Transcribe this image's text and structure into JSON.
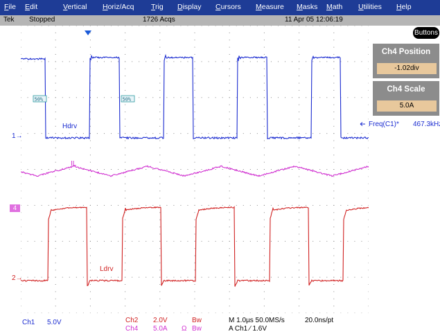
{
  "menu": [
    {
      "label": "File"
    },
    {
      "label": "Edit"
    },
    {
      "label": "Vertical"
    },
    {
      "label": "Horiz/Acq"
    },
    {
      "label": "Trig"
    },
    {
      "label": "Display"
    },
    {
      "label": "Cursors"
    },
    {
      "label": "Measure"
    },
    {
      "label": "Masks"
    },
    {
      "label": "Math"
    },
    {
      "label": "Utilities"
    },
    {
      "label": "Help"
    }
  ],
  "status": {
    "brand": "Tek",
    "state": "Stopped",
    "acqs": "1726 Acqs",
    "datetime": "11 Apr 05 12:06:19"
  },
  "panel": {
    "button_label": "Buttons",
    "position": {
      "title": "Ch4 Position",
      "value": "-1.02div"
    },
    "scale": {
      "title": "Ch4 Scale",
      "value": "5.0A"
    }
  },
  "scope": {
    "trace_labels": {
      "hdrv": "Hdrv",
      "il": "IL",
      "ldrv": "Ldrv"
    },
    "ref_markers": {
      "ch1": "1",
      "ch4": "4",
      "ch2": "2"
    },
    "pct_markers": [
      "50%",
      "50%"
    ],
    "measurement": {
      "label": "Freq(C1)*",
      "value": "467.3kHz"
    }
  },
  "bottom": {
    "ch1_name": "Ch1",
    "ch1_scale": "5.0V",
    "ch2_name": "Ch2",
    "ch2_scale": "2.0V",
    "ch2_bw": "Bw",
    "ch4_name": "Ch4",
    "ch4_scale": "5.0A",
    "ch4_ohm": "Ω",
    "ch4_bw": "Bw",
    "timebase": "M 1.0µs 50.0MS/s",
    "trigger": "A Ch1 ∕ 1.6V",
    "resolution": "20.0ns/pt"
  },
  "colors": {
    "menubar": "#1e3c96",
    "ch1": "#1a2bd0",
    "ch2": "#d02020",
    "ch4": "#d030d0",
    "panel": "#8c8c8c",
    "value_field": "#e8c89c"
  }
}
